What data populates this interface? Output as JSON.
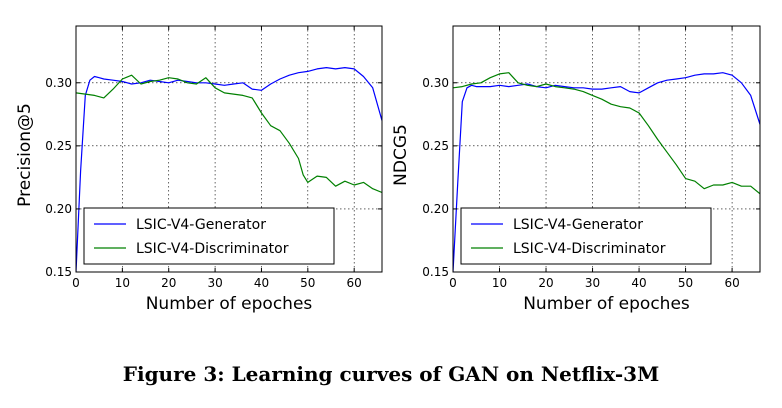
{
  "caption": "Figure 3: Learning curves of GAN on Netflix-3M",
  "chart_data": [
    {
      "type": "line",
      "xlabel": "Number of epoches",
      "ylabel": "Precision@5",
      "xlim": [
        0,
        66
      ],
      "ylim": [
        0.15,
        0.345
      ],
      "xticks": [
        0,
        10,
        20,
        30,
        40,
        50,
        60
      ],
      "yticks": [
        0.15,
        0.2,
        0.25,
        0.3
      ],
      "ytick_labels": [
        "0.15",
        "0.20",
        "0.25",
        "0.30"
      ],
      "grid": true,
      "legend_position": "lower-left",
      "series": [
        {
          "name": "LSIC-V4-Generator",
          "color": "#0000ff",
          "x": [
            0,
            1,
            2,
            3,
            4,
            5,
            6,
            8,
            10,
            12,
            14,
            16,
            18,
            20,
            22,
            24,
            26,
            28,
            30,
            32,
            34,
            36,
            38,
            40,
            42,
            44,
            46,
            48,
            50,
            52,
            54,
            56,
            58,
            60,
            62,
            64,
            66
          ],
          "y": [
            0.15,
            0.23,
            0.29,
            0.302,
            0.305,
            0.304,
            0.303,
            0.302,
            0.301,
            0.299,
            0.3,
            0.302,
            0.301,
            0.3,
            0.302,
            0.301,
            0.3,
            0.3,
            0.299,
            0.298,
            0.299,
            0.3,
            0.295,
            0.294,
            0.299,
            0.303,
            0.306,
            0.308,
            0.309,
            0.311,
            0.312,
            0.311,
            0.312,
            0.311,
            0.305,
            0.296,
            0.27
          ]
        },
        {
          "name": "LSIC-V4-Discriminator",
          "color": "#008000",
          "x": [
            0,
            2,
            4,
            6,
            8,
            10,
            12,
            14,
            16,
            18,
            20,
            22,
            24,
            26,
            28,
            30,
            32,
            34,
            36,
            38,
            40,
            42,
            44,
            46,
            48,
            49,
            50,
            52,
            54,
            56,
            58,
            60,
            62,
            64,
            66
          ],
          "y": [
            0.292,
            0.291,
            0.29,
            0.288,
            0.295,
            0.303,
            0.306,
            0.299,
            0.301,
            0.302,
            0.304,
            0.303,
            0.3,
            0.299,
            0.304,
            0.296,
            0.292,
            0.291,
            0.29,
            0.288,
            0.276,
            0.266,
            0.262,
            0.252,
            0.24,
            0.227,
            0.221,
            0.226,
            0.225,
            0.218,
            0.222,
            0.219,
            0.221,
            0.216,
            0.213
          ]
        }
      ]
    },
    {
      "type": "line",
      "xlabel": "Number of epoches",
      "ylabel": "NDCG5",
      "xlim": [
        0,
        66
      ],
      "ylim": [
        0.15,
        0.345
      ],
      "xticks": [
        0,
        10,
        20,
        30,
        40,
        50,
        60
      ],
      "yticks": [
        0.15,
        0.2,
        0.25,
        0.3
      ],
      "ytick_labels": [
        "0.15",
        "0.20",
        "0.25",
        "0.30"
      ],
      "grid": true,
      "legend_position": "lower-left",
      "series": [
        {
          "name": "LSIC-V4-Generator",
          "color": "#0000ff",
          "x": [
            0,
            1,
            2,
            3,
            4,
            5,
            6,
            8,
            10,
            12,
            14,
            16,
            18,
            20,
            22,
            24,
            26,
            28,
            30,
            32,
            34,
            36,
            38,
            40,
            42,
            44,
            46,
            48,
            50,
            52,
            54,
            56,
            58,
            60,
            62,
            64,
            66
          ],
          "y": [
            0.15,
            0.22,
            0.285,
            0.296,
            0.298,
            0.297,
            0.297,
            0.297,
            0.298,
            0.297,
            0.298,
            0.299,
            0.297,
            0.296,
            0.298,
            0.297,
            0.296,
            0.296,
            0.295,
            0.295,
            0.296,
            0.297,
            0.293,
            0.292,
            0.296,
            0.3,
            0.302,
            0.303,
            0.304,
            0.306,
            0.307,
            0.307,
            0.308,
            0.306,
            0.3,
            0.29,
            0.267
          ]
        },
        {
          "name": "LSIC-V4-Discriminator",
          "color": "#008000",
          "x": [
            0,
            2,
            4,
            6,
            8,
            10,
            12,
            14,
            16,
            18,
            20,
            22,
            24,
            26,
            28,
            30,
            32,
            34,
            36,
            38,
            40,
            42,
            44,
            46,
            48,
            50,
            52,
            54,
            56,
            58,
            60,
            62,
            64,
            66
          ],
          "y": [
            0.296,
            0.297,
            0.299,
            0.3,
            0.304,
            0.307,
            0.308,
            0.3,
            0.298,
            0.297,
            0.299,
            0.297,
            0.296,
            0.295,
            0.293,
            0.29,
            0.287,
            0.283,
            0.281,
            0.28,
            0.276,
            0.266,
            0.255,
            0.245,
            0.235,
            0.224,
            0.222,
            0.216,
            0.219,
            0.219,
            0.221,
            0.218,
            0.218,
            0.212
          ]
        }
      ]
    }
  ]
}
